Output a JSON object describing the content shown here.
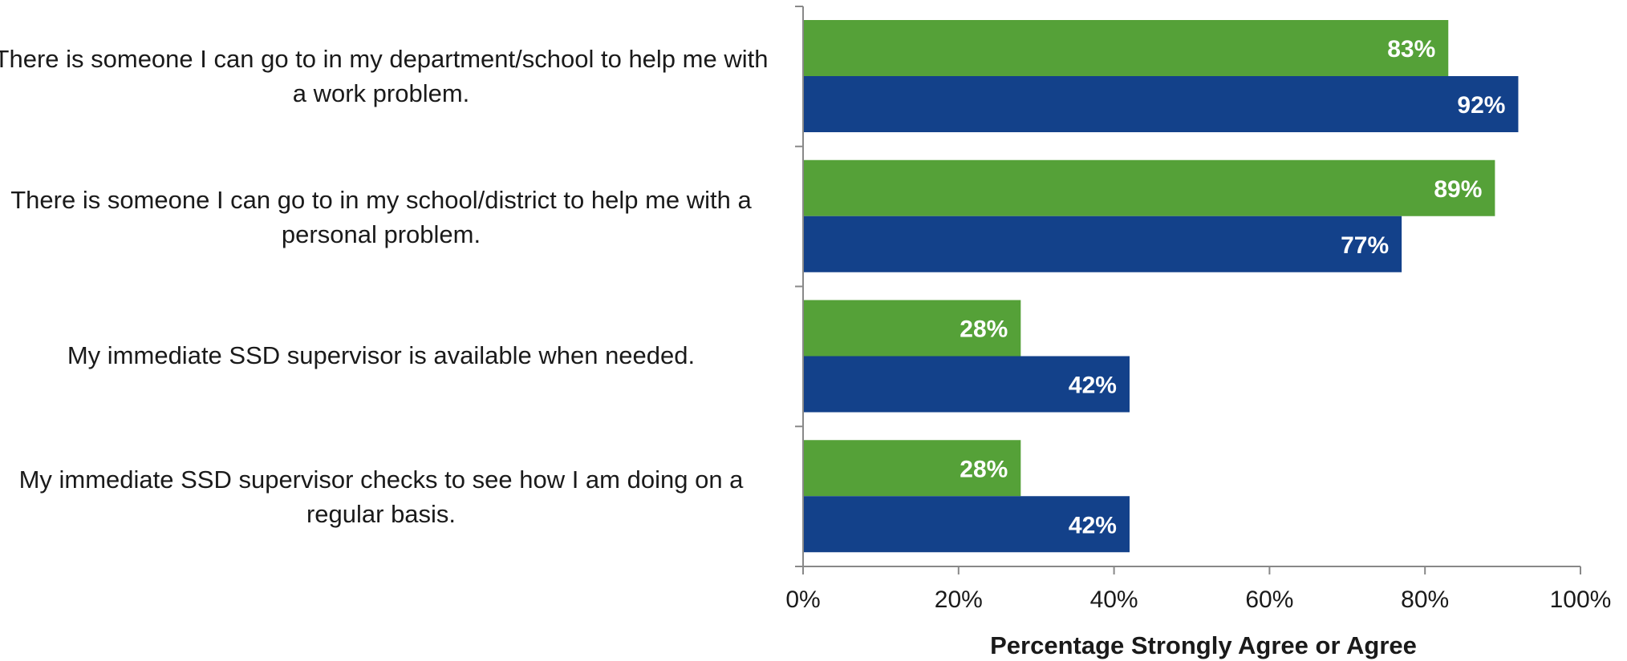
{
  "chart_data": {
    "type": "bar",
    "orientation": "horizontal",
    "title": "",
    "xlabel": "Percentage Strongly Agree or Agree",
    "ylabel": "",
    "xlim": [
      0,
      100
    ],
    "ticks": [
      "0%",
      "20%",
      "40%",
      "60%",
      "80%",
      "100%"
    ],
    "tick_values": [
      0,
      20,
      40,
      60,
      80,
      100
    ],
    "grid": false,
    "legend": "none",
    "categories": [
      "There is someone I can go to in my department/school to help me with a work problem.",
      "There is someone I can go to in my school/district to help me with a personal problem.",
      "My immediate SSD supervisor is available when needed.",
      "My immediate SSD supervisor checks to see how I am doing on a regular basis."
    ],
    "series": [
      {
        "color": "#55a138",
        "values": [
          83,
          89,
          28,
          28
        ],
        "labels": [
          "83%",
          "89%",
          "28%",
          "28%"
        ]
      },
      {
        "color": "#13418a",
        "values": [
          92,
          77,
          42,
          42
        ],
        "labels": [
          "92%",
          "77%",
          "42%",
          "42%"
        ]
      }
    ]
  }
}
